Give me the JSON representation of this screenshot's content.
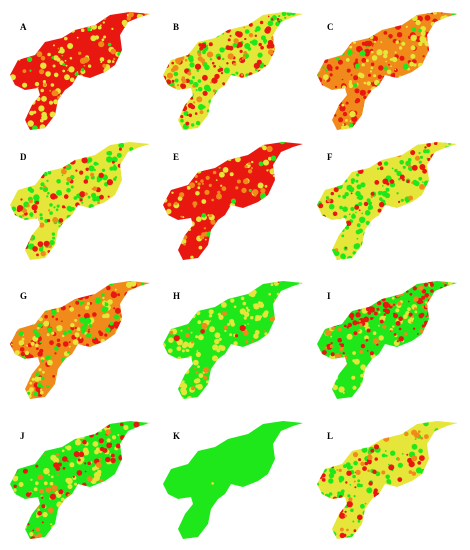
{
  "labels": [
    "A",
    "B",
    "C",
    "D",
    "E",
    "F",
    "G",
    "H",
    "I",
    "J",
    "K",
    "L"
  ]
}
